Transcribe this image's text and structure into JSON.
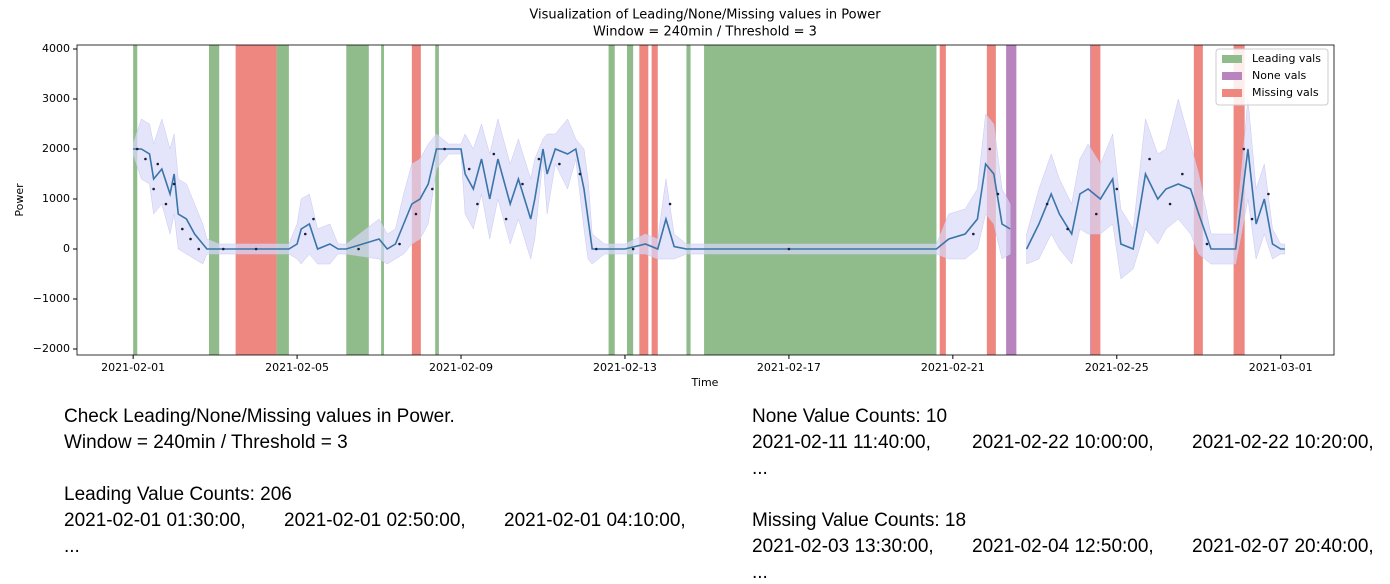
{
  "chart_data": {
    "type": "line",
    "title": "Visualization of Leading/None/Missing values in Power",
    "subtitle": "Window = 240min / Threshold = 3",
    "x_label": "Time",
    "y_label": "Power",
    "xlim": [
      -1.37,
      29.3
    ],
    "ylim": [
      -2120,
      4080
    ],
    "xticks": [
      {
        "value": 0,
        "label": "2021-02-01"
      },
      {
        "value": 4,
        "label": "2021-02-05"
      },
      {
        "value": 8,
        "label": "2021-02-09"
      },
      {
        "value": 12,
        "label": "2021-02-13"
      },
      {
        "value": 16,
        "label": "2021-02-17"
      },
      {
        "value": 20,
        "label": "2021-02-21"
      },
      {
        "value": 24,
        "label": "2021-02-25"
      },
      {
        "value": 28,
        "label": "2021-03-01"
      }
    ],
    "yticks": [
      {
        "value": -2000,
        "label": "−2000"
      },
      {
        "value": -1000,
        "label": "−1000"
      },
      0,
      1000,
      2000,
      3000,
      4000
    ],
    "legend": "upper right",
    "spans": [
      {
        "name": "Leading vals",
        "color": "#8fbc8a",
        "ranges": [
          [
            0,
            0.1
          ],
          [
            1.85,
            2.1
          ],
          [
            3.5,
            3.8
          ],
          [
            5.2,
            5.75
          ],
          [
            6.05,
            6.12
          ],
          [
            7.37,
            7.46
          ],
          [
            11.6,
            11.75
          ],
          [
            12.05,
            12.2
          ],
          [
            13.5,
            13.6
          ],
          [
            13.93,
            19.6
          ]
        ]
      },
      {
        "name": "None vals",
        "color": "#b784bd",
        "ranges": [
          [
            21.3,
            21.55
          ],
          [
            23.35,
            23.4
          ]
        ]
      },
      {
        "name": "Missing vals",
        "color": "#ef8781",
        "ranges": [
          [
            2.5,
            3.5
          ],
          [
            6.8,
            7.02
          ],
          [
            12.35,
            12.57
          ],
          [
            12.65,
            12.8
          ],
          [
            19.68,
            19.83
          ],
          [
            20.83,
            21.05
          ],
          [
            23.37,
            23.6
          ],
          [
            25.88,
            26.1
          ],
          [
            26.85,
            27.12
          ]
        ]
      }
    ],
    "line": {
      "color": "#3a75a9",
      "x": [
        0,
        0.2,
        0.4,
        0.5,
        0.7,
        0.9,
        1.0,
        1.1,
        1.3,
        1.5,
        1.7,
        1.8,
        2.1,
        2.4,
        3.5,
        3.8,
        4.0,
        4.1,
        4.3,
        4.5,
        4.8,
        5.0,
        5.2,
        6.0,
        6.2,
        6.4,
        6.6,
        6.8,
        7.0,
        7.2,
        7.4,
        7.7,
        8.0,
        8.1,
        8.3,
        8.5,
        8.7,
        8.9,
        9.2,
        9.4,
        9.7,
        9.8,
        10.0,
        10.1,
        10.3,
        10.6,
        10.8,
        11.0,
        11.1,
        11.2,
        11.5,
        12.0,
        12.5,
        12.8,
        13.0,
        13.2,
        13.5,
        13.8,
        19.6,
        19.9,
        20.3,
        20.6,
        20.8,
        21.0,
        21.2,
        21.4,
        21.55,
        21.8,
        22.1,
        22.4,
        22.6,
        22.9,
        23.1,
        23.3,
        23.6,
        23.9,
        24.1,
        24.4,
        24.7,
        25.0,
        25.2,
        25.5,
        25.8,
        26.0,
        26.3,
        26.6,
        26.9,
        27.2,
        27.4,
        27.6,
        27.8,
        28.0,
        28.1
      ],
      "values": [
        2000,
        2000,
        1900,
        1400,
        1600,
        1100,
        1500,
        700,
        600,
        300,
        100,
        0,
        0,
        0,
        0,
        0,
        100,
        400,
        500,
        0,
        100,
        0,
        0,
        200,
        0,
        100,
        500,
        900,
        1000,
        1300,
        2000,
        2000,
        2000,
        1500,
        1200,
        1800,
        1000,
        1800,
        900,
        1400,
        600,
        1000,
        2000,
        1500,
        2000,
        1900,
        2000,
        1200,
        600,
        0,
        0,
        0,
        100,
        0,
        600,
        50,
        0,
        0,
        0,
        200,
        300,
        600,
        1700,
        1500,
        500,
        400,
        null,
        0,
        500,
        1100,
        700,
        300,
        1100,
        1200,
        1000,
        1400,
        100,
        0,
        1500,
        1000,
        1200,
        1300,
        1200,
        700,
        0,
        0,
        0,
        2000,
        500,
        1000,
        100,
        0,
        0
      ]
    },
    "band": {
      "color": "#d8d8f8",
      "upper": [
        2100,
        2600,
        2500,
        2100,
        2600,
        2000,
        2300,
        1400,
        1300,
        900,
        500,
        200,
        100,
        100,
        100,
        100,
        500,
        1000,
        1100,
        400,
        500,
        100,
        100,
        600,
        300,
        400,
        1100,
        1700,
        1800,
        2100,
        2300,
        2100,
        2100,
        2300,
        2000,
        2500,
        1900,
        2600,
        1700,
        2200,
        1400,
        1800,
        2200,
        2300,
        2300,
        2600,
        2200,
        2000,
        1400,
        300,
        100,
        100,
        300,
        200,
        1400,
        300,
        100,
        100,
        100,
        700,
        800,
        1200,
        2700,
        2500,
        1200,
        900,
        null,
        300,
        1200,
        1900,
        1400,
        900,
        1800,
        2100,
        1700,
        2300,
        800,
        400,
        2600,
        1900,
        2000,
        3000,
        2100,
        1500,
        300,
        300,
        300,
        3000,
        1200,
        1700,
        400,
        100,
        100
      ],
      "lower": [
        1900,
        1400,
        1300,
        700,
        900,
        300,
        700,
        0,
        -100,
        -200,
        -300,
        -100,
        -100,
        -100,
        -100,
        -100,
        -200,
        -300,
        -100,
        -300,
        -300,
        -100,
        -100,
        -200,
        -300,
        -200,
        -100,
        100,
        200,
        500,
        1600,
        1900,
        1900,
        700,
        400,
        1100,
        200,
        1000,
        100,
        600,
        -200,
        200,
        1800,
        700,
        1700,
        1200,
        1800,
        400,
        -200,
        -300,
        -100,
        -100,
        -100,
        -200,
        -200,
        -200,
        -100,
        -100,
        -100,
        -200,
        -200,
        0,
        700,
        500,
        -200,
        -100,
        null,
        -300,
        -200,
        300,
        0,
        -300,
        400,
        300,
        300,
        500,
        -600,
        -400,
        400,
        100,
        400,
        600,
        300,
        -100,
        -300,
        -300,
        -300,
        1000,
        -200,
        300,
        -200,
        -100,
        -100
      ]
    },
    "points": {
      "color": "#1c1c3a",
      "x": [
        0.1,
        0.3,
        0.5,
        0.6,
        0.8,
        1.0,
        1.2,
        1.4,
        1.6,
        2.2,
        3.0,
        4.2,
        4.4,
        5.5,
        6.5,
        6.9,
        7.3,
        7.6,
        8.2,
        8.4,
        8.8,
        9.1,
        9.5,
        9.9,
        10.4,
        10.9,
        11.3,
        12.2,
        13.1,
        16.0,
        20.5,
        20.9,
        21.1,
        22.3,
        22.8,
        23.5,
        24.0,
        24.8,
        25.3,
        25.6,
        26.2,
        27.1,
        27.3,
        27.7
      ],
      "y": [
        2000,
        1800,
        1200,
        1700,
        900,
        1300,
        400,
        200,
        0,
        0,
        0,
        300,
        600,
        0,
        100,
        700,
        1200,
        2000,
        1600,
        900,
        1900,
        600,
        1300,
        1800,
        1700,
        1500,
        0,
        0,
        900,
        0,
        300,
        2000,
        1100,
        900,
        400,
        700,
        1200,
        1800,
        900,
        1500,
        100,
        2000,
        600,
        1100
      ]
    }
  },
  "report": {
    "heading": [
      "Check Leading/None/Missing values in Power.",
      "Window = 240min / Threshold = 3"
    ],
    "sections": [
      {
        "title": "Leading Value Counts: 206",
        "items": [
          "2021-02-01 01:30:00,",
          "2021-02-01 02:50:00,",
          "2021-02-01 04:10:00,"
        ],
        "more": "..."
      },
      {
        "title": "None Value Counts: 10",
        "items": [
          "2021-02-11 11:40:00,",
          "2021-02-22 10:00:00,",
          "2021-02-22 10:20:00,"
        ],
        "more": "..."
      },
      {
        "title": "Missing Value Counts: 18",
        "items": [
          "2021-02-03 13:30:00,",
          "2021-02-04 12:50:00,",
          "2021-02-07 20:40:00,"
        ],
        "more": "..."
      }
    ]
  }
}
